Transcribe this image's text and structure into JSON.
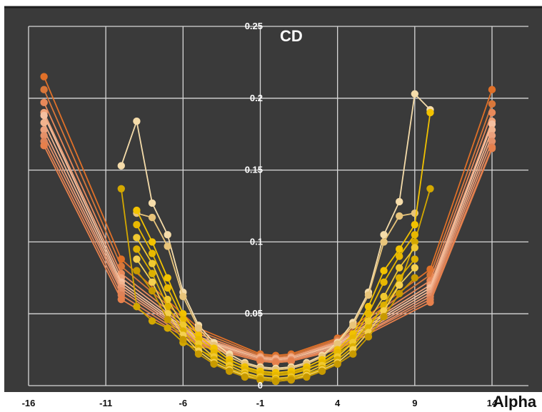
{
  "chart_data": {
    "type": "line",
    "y_title": "CD",
    "x_title": "Alpha",
    "x_ticks": [
      "-16",
      "-11",
      "-6",
      "-1",
      "4",
      "9",
      "14"
    ],
    "y_ticks": [
      "0",
      "0.05",
      "0.1",
      "0.15",
      "0.2",
      "0.25"
    ],
    "xlim": [
      -16,
      15
    ],
    "ylim": [
      0,
      0.25
    ],
    "grid": true,
    "legend": "none",
    "background_color": "#3a3a3a",
    "series": [
      {
        "color": "#E07028",
        "x": [
          -15,
          -10,
          -5,
          -1,
          0,
          1,
          4,
          10,
          14
        ],
        "y": [
          0.215,
          0.088,
          0.04,
          0.022,
          0.021,
          0.022,
          0.033,
          0.081,
          0.206
        ]
      },
      {
        "color": "#D9773A",
        "x": [
          -15,
          -10,
          -5,
          -1,
          0,
          1,
          4,
          10,
          14
        ],
        "y": [
          0.206,
          0.083,
          0.038,
          0.021,
          0.02,
          0.021,
          0.032,
          0.077,
          0.196
        ]
      },
      {
        "color": "#E8895A",
        "x": [
          -15,
          -10,
          -5,
          -1,
          0,
          1,
          4,
          10,
          14
        ],
        "y": [
          0.197,
          0.078,
          0.036,
          0.02,
          0.019,
          0.02,
          0.031,
          0.073,
          0.19
        ]
      },
      {
        "color": "#F0A37A",
        "x": [
          -15,
          -10,
          -5,
          -1,
          0,
          1,
          4,
          10,
          14
        ],
        "y": [
          0.19,
          0.075,
          0.034,
          0.02,
          0.019,
          0.02,
          0.03,
          0.07,
          0.184
        ]
      },
      {
        "color": "#F5C0A0",
        "x": [
          -15,
          -10,
          -5,
          -1,
          0,
          1,
          4,
          10,
          14
        ],
        "y": [
          0.188,
          0.072,
          0.033,
          0.019,
          0.018,
          0.019,
          0.029,
          0.068,
          0.182
        ]
      },
      {
        "color": "#F2B38E",
        "x": [
          -15,
          -10,
          -5,
          -1,
          0,
          1,
          4,
          10,
          14
        ],
        "y": [
          0.183,
          0.07,
          0.032,
          0.019,
          0.018,
          0.019,
          0.028,
          0.066,
          0.178
        ]
      },
      {
        "color": "#EBA07C",
        "x": [
          -15,
          -10,
          -5,
          -1,
          0,
          1,
          4,
          10,
          14
        ],
        "y": [
          0.178,
          0.068,
          0.031,
          0.018,
          0.017,
          0.018,
          0.027,
          0.064,
          0.174
        ]
      },
      {
        "color": "#E59068",
        "x": [
          -15,
          -10,
          -5,
          -1,
          0,
          1,
          4,
          10,
          14
        ],
        "y": [
          0.174,
          0.066,
          0.03,
          0.018,
          0.017,
          0.018,
          0.026,
          0.062,
          0.17
        ]
      },
      {
        "color": "#DD8258",
        "x": [
          -15,
          -10,
          -5,
          -1,
          0,
          1,
          4,
          10,
          14
        ],
        "y": [
          0.17,
          0.063,
          0.029,
          0.017,
          0.016,
          0.017,
          0.026,
          0.06,
          0.166
        ]
      },
      {
        "color": "#E6804C",
        "x": [
          -15,
          -10,
          -5,
          -1,
          0,
          1,
          4,
          10,
          14
        ],
        "y": [
          0.167,
          0.06,
          0.028,
          0.017,
          0.016,
          0.017,
          0.025,
          0.058,
          0.165
        ]
      },
      {
        "color": "#F5DCAA",
        "x": [
          -10,
          -9,
          -8,
          -7,
          -6,
          -5,
          -4,
          -3,
          -2,
          -1,
          0,
          1,
          2,
          3,
          4,
          5,
          6,
          7,
          8,
          9,
          10
        ],
        "y": [
          0.153,
          0.184,
          0.127,
          0.105,
          0.065,
          0.042,
          0.03,
          0.022,
          0.016,
          0.013,
          0.012,
          0.013,
          0.016,
          0.021,
          0.03,
          0.044,
          0.065,
          0.105,
          0.128,
          0.203,
          0.192
        ]
      },
      {
        "color": "#E8C47A",
        "x": [
          -9,
          -8,
          -7,
          -6,
          -5,
          -4,
          -3,
          -2,
          -1,
          0,
          1,
          2,
          3,
          4,
          5,
          6,
          7,
          8,
          9
        ],
        "y": [
          0.12,
          0.117,
          0.097,
          0.062,
          0.04,
          0.028,
          0.02,
          0.015,
          0.012,
          0.011,
          0.012,
          0.015,
          0.02,
          0.029,
          0.042,
          0.063,
          0.1,
          0.118,
          0.12
        ]
      },
      {
        "color": "#D4A800",
        "x": [
          -10,
          -9,
          -8,
          -7,
          -6,
          -5,
          -4,
          -3,
          -2,
          -1,
          0,
          1,
          2,
          3,
          4,
          5,
          6,
          7,
          8,
          9,
          10
        ],
        "y": [
          0.137,
          0.055,
          0.045,
          0.04,
          0.03,
          0.025,
          0.02,
          0.015,
          0.012,
          0.009,
          0.008,
          0.009,
          0.012,
          0.015,
          0.022,
          0.03,
          0.042,
          0.055,
          0.07,
          0.1,
          0.137
        ]
      },
      {
        "color": "#F2C200",
        "x": [
          -9,
          -8,
          -7,
          -6,
          -5,
          -4,
          -3,
          -2,
          -1,
          0,
          1,
          2,
          3,
          4,
          5,
          6,
          7,
          8,
          9,
          10
        ],
        "y": [
          0.122,
          0.1,
          0.075,
          0.05,
          0.035,
          0.026,
          0.018,
          0.013,
          0.01,
          0.009,
          0.01,
          0.013,
          0.018,
          0.025,
          0.036,
          0.055,
          0.08,
          0.095,
          0.112,
          0.19
        ]
      },
      {
        "color": "#E8B800",
        "x": [
          -9,
          -8,
          -7,
          -6,
          -5,
          -4,
          -3,
          -2,
          -1,
          0,
          1,
          2,
          3,
          4,
          5,
          6,
          7,
          8,
          9
        ],
        "y": [
          0.112,
          0.092,
          0.068,
          0.046,
          0.032,
          0.023,
          0.016,
          0.011,
          0.008,
          0.007,
          0.008,
          0.011,
          0.016,
          0.023,
          0.033,
          0.05,
          0.072,
          0.09,
          0.105
        ]
      },
      {
        "color": "#F0C830",
        "x": [
          -9,
          -8,
          -7,
          -6,
          -5,
          -4,
          -3,
          -2,
          -1,
          0,
          1,
          2,
          3,
          4,
          5,
          6,
          7,
          8,
          9
        ],
        "y": [
          0.103,
          0.085,
          0.06,
          0.042,
          0.029,
          0.02,
          0.014,
          0.009,
          0.006,
          0.005,
          0.006,
          0.009,
          0.014,
          0.02,
          0.03,
          0.045,
          0.062,
          0.082,
          0.096
        ]
      },
      {
        "color": "#DDB000",
        "x": [
          -9,
          -8,
          -7,
          -6,
          -5,
          -4,
          -3,
          -2,
          -1,
          0,
          1,
          2,
          3,
          4,
          5,
          6,
          7,
          8,
          9
        ],
        "y": [
          0.095,
          0.078,
          0.055,
          0.038,
          0.026,
          0.018,
          0.012,
          0.008,
          0.005,
          0.004,
          0.005,
          0.008,
          0.012,
          0.018,
          0.027,
          0.04,
          0.056,
          0.075,
          0.088
        ]
      },
      {
        "color": "#F5D050",
        "x": [
          -9,
          -8,
          -7,
          -6,
          -5,
          -4,
          -3,
          -2,
          -1,
          0,
          1,
          2,
          3,
          4,
          5,
          6,
          7,
          8,
          9
        ],
        "y": [
          0.088,
          0.072,
          0.05,
          0.035,
          0.024,
          0.016,
          0.011,
          0.007,
          0.004,
          0.003,
          0.004,
          0.007,
          0.011,
          0.016,
          0.025,
          0.037,
          0.052,
          0.07,
          0.082
        ]
      },
      {
        "color": "#C89A00",
        "x": [
          -9,
          -8,
          -7,
          -6,
          -5,
          -4,
          -3,
          -2,
          -1,
          0,
          1,
          2,
          3,
          4,
          5,
          6,
          7,
          8,
          9
        ],
        "y": [
          0.08,
          0.066,
          0.046,
          0.032,
          0.022,
          0.015,
          0.01,
          0.006,
          0.004,
          0.003,
          0.004,
          0.006,
          0.01,
          0.015,
          0.022,
          0.034,
          0.048,
          0.064,
          0.075
        ]
      }
    ]
  }
}
